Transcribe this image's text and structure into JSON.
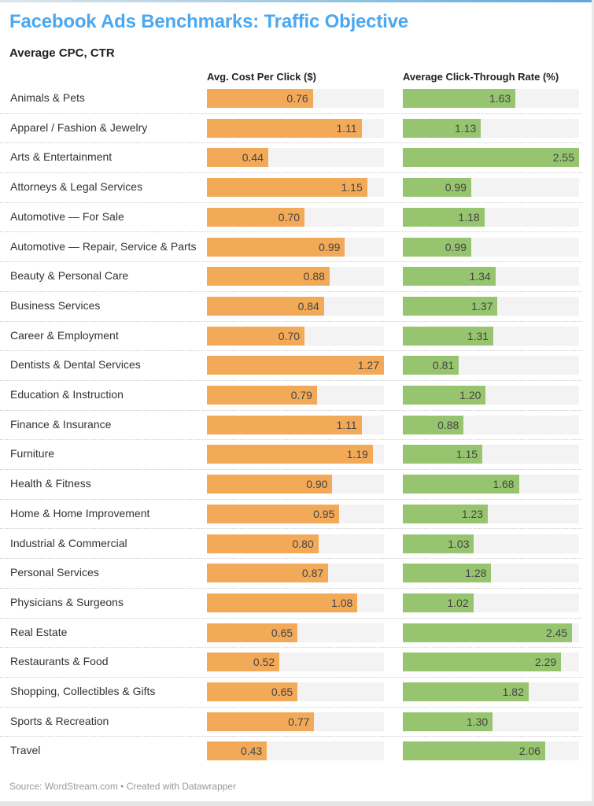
{
  "title": "Facebook Ads Benchmarks: Traffic Objective",
  "subtitle": "Average CPC, CTR",
  "footer": "Source: WordStream.com • Created with Datawrapper",
  "colors": {
    "title": "#4ba8f0",
    "cpc": "#f3aa58",
    "ctr": "#97c56f",
    "track": "#f3f3f3"
  },
  "chart_data": {
    "type": "bar",
    "orientation": "horizontal",
    "categories": [
      "Animals & Pets",
      "Apparel / Fashion & Jewelry",
      "Arts & Entertainment",
      "Attorneys & Legal Services",
      "Automotive — For Sale",
      "Automotive — Repair, Service & Parts",
      "Beauty & Personal Care",
      "Business Services",
      "Career & Employment",
      "Dentists & Dental Services",
      "Education & Instruction",
      "Finance & Insurance",
      "Furniture",
      "Health & Fitness",
      "Home & Home Improvement",
      "Industrial & Commercial",
      "Personal Services",
      "Physicians & Surgeons",
      "Real Estate",
      "Restaurants & Food",
      "Shopping, Collectibles & Gifts",
      "Sports & Recreation",
      "Travel"
    ],
    "series": [
      {
        "name": "Avg. Cost Per Click ($)",
        "values": [
          "0.76",
          "1.11",
          "0.44",
          "1.15",
          "0.70",
          "0.99",
          "0.88",
          "0.84",
          "0.70",
          "1.27",
          "0.79",
          "1.11",
          "1.19",
          "0.90",
          "0.95",
          "0.80",
          "0.87",
          "1.08",
          "0.65",
          "0.52",
          "0.65",
          "0.77",
          "0.43"
        ]
      },
      {
        "name": "Average Click-Through Rate (%)",
        "values": [
          "1.63",
          "1.13",
          "2.55",
          "0.99",
          "1.18",
          "0.99",
          "1.34",
          "1.37",
          "1.31",
          "0.81",
          "1.20",
          "0.88",
          "1.15",
          "1.68",
          "1.23",
          "1.03",
          "1.28",
          "1.02",
          "2.45",
          "2.29",
          "1.82",
          "1.30",
          "2.06"
        ]
      }
    ]
  }
}
